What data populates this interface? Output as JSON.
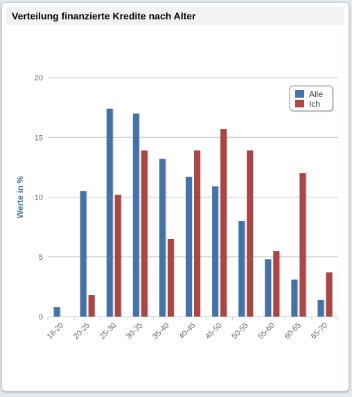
{
  "panel": {
    "title": "Verteilung finanzierte Kredite nach Alter"
  },
  "chart_data": {
    "type": "bar",
    "title": "",
    "xlabel": "",
    "ylabel": "Werte in %",
    "ylim": [
      0,
      20
    ],
    "yticks": [
      0,
      5,
      10,
      15,
      20
    ],
    "grid": true,
    "legend": "top-right",
    "categories": [
      "18-20",
      "20-25",
      "25-30",
      "30-35",
      "35-40",
      "40-45",
      "45-50",
      "50-55",
      "55-60",
      "60-65",
      "65-70"
    ],
    "series": [
      {
        "name": "Alle",
        "color": "#4572a7",
        "values": [
          0.8,
          10.5,
          17.4,
          17.0,
          13.2,
          11.7,
          10.9,
          8.0,
          4.8,
          3.1,
          1.4
        ]
      },
      {
        "name": "Ich",
        "color": "#aa4643",
        "values": [
          0,
          1.8,
          10.2,
          13.9,
          6.5,
          13.9,
          15.7,
          13.9,
          5.5,
          12.0,
          3.7
        ]
      }
    ]
  }
}
